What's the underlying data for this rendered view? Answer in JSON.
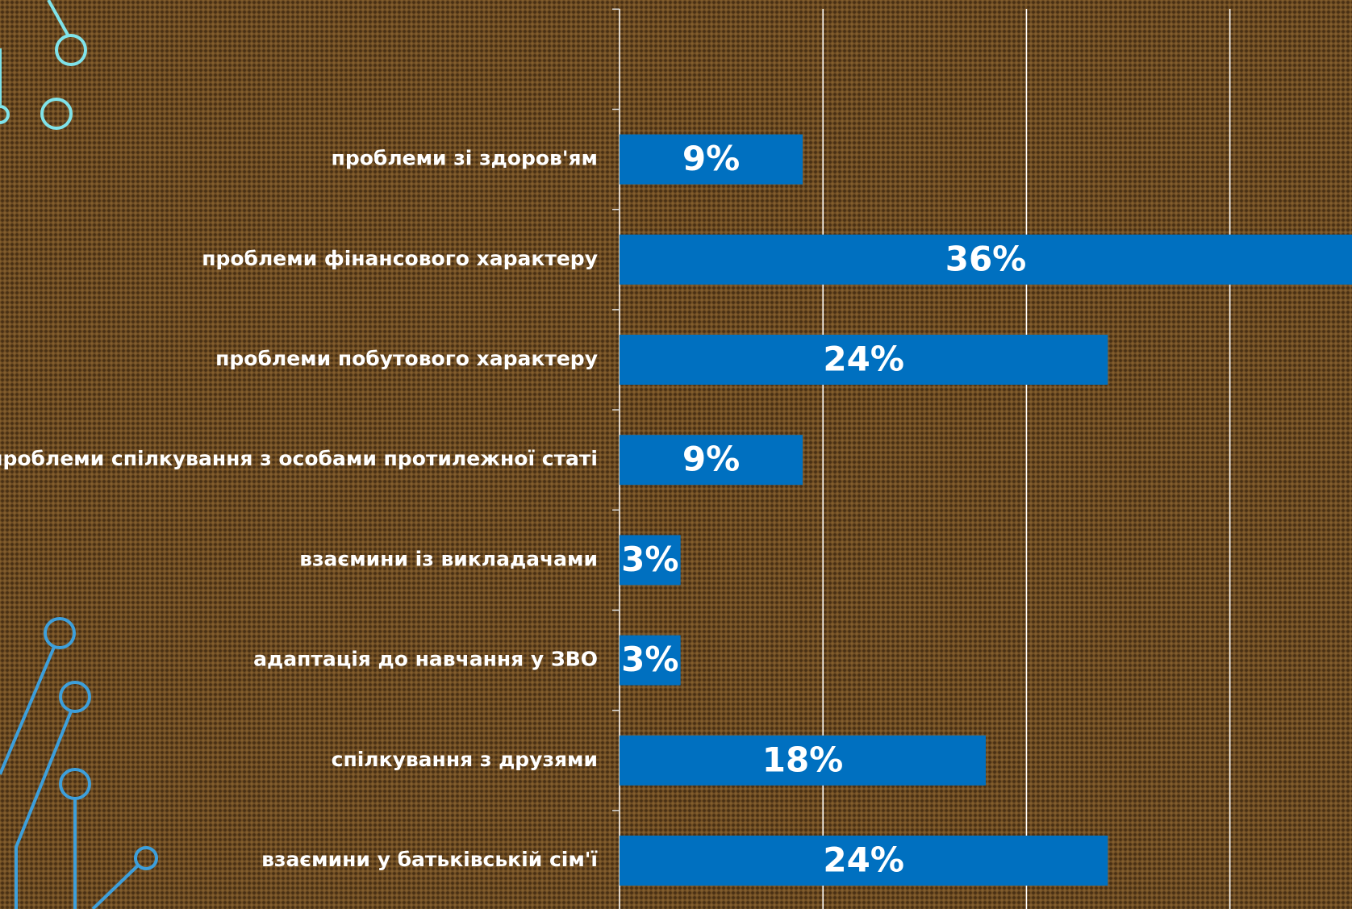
{
  "chart_data": {
    "type": "barh",
    "categories": [
      "проблеми зі здоров'ям",
      "проблеми фінансового характеру",
      "проблеми побутового характеру",
      "проблеми спілкування з особами протилежної статі",
      "взаємини із викладачами",
      "адаптація до навчання у ЗВО",
      "спілкування з друзями",
      "взаємини у батьківській сім'ї"
    ],
    "values": [
      9,
      36,
      24,
      9,
      3,
      3,
      18,
      24
    ],
    "value_labels": [
      "9%",
      "36%",
      "24%",
      "9%",
      "3%",
      "3%",
      "18%",
      "24%"
    ],
    "color": "#0070c0",
    "xlim": [
      0,
      36
    ],
    "xticks": [
      0,
      10,
      20,
      30
    ],
    "grid": true
  }
}
